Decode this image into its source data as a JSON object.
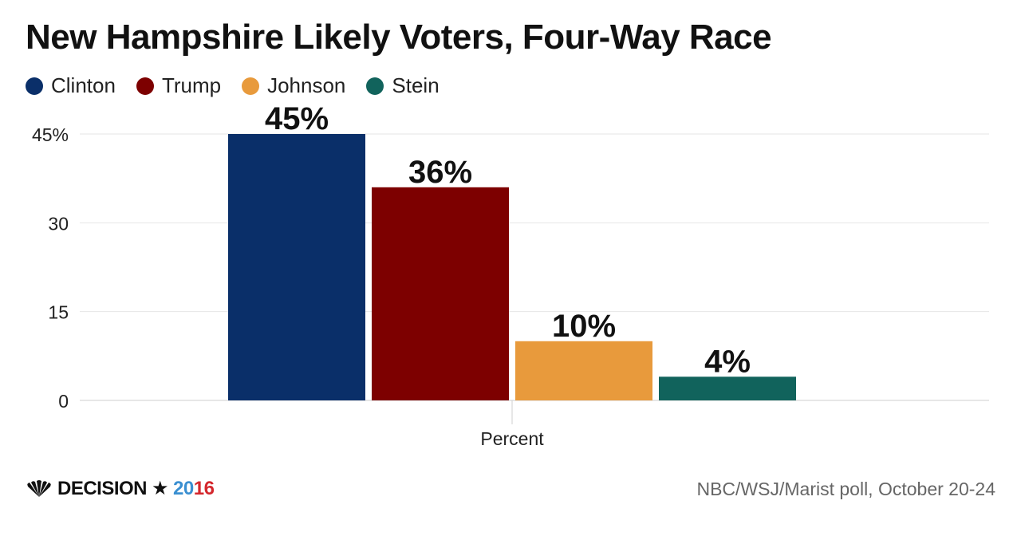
{
  "chart_data": {
    "type": "bar",
    "title": "New Hampshire Likely Voters, Four-Way Race",
    "categories": [
      "Percent"
    ],
    "series": [
      {
        "name": "Clinton",
        "values": [
          45
        ],
        "label": "45%",
        "color": "#0a2f69"
      },
      {
        "name": "Trump",
        "values": [
          36
        ],
        "label": "36%",
        "color": "#7d0000"
      },
      {
        "name": "Johnson",
        "values": [
          10
        ],
        "label": "10%",
        "color": "#e89a3c"
      },
      {
        "name": "Stein",
        "values": [
          4
        ],
        "label": "4%",
        "color": "#11635c"
      }
    ],
    "ylim": [
      0,
      45
    ],
    "yticks": [
      0,
      15,
      30,
      45
    ],
    "ytick_labels": [
      "0",
      "15",
      "30",
      "45%"
    ],
    "xlabel": "",
    "ylabel": "",
    "grid": true,
    "legend_position": "top-left"
  },
  "footer": {
    "brand": "DECISION",
    "star": "★",
    "year_a": "20",
    "year_b": "16",
    "source": "NBC/WSJ/Marist poll, October 20-24"
  }
}
